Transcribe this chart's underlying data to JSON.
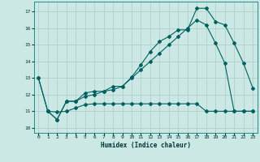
{
  "xlabel": "Humidex (Indice chaleur)",
  "bg_color": "#cce8e4",
  "grid_color": "#aaccc8",
  "line_color": "#006060",
  "xlim": [
    -0.5,
    23.5
  ],
  "ylim": [
    9.7,
    17.6
  ],
  "yticks": [
    10,
    11,
    12,
    13,
    14,
    15,
    16,
    17
  ],
  "xticks": [
    0,
    1,
    2,
    3,
    4,
    5,
    6,
    7,
    8,
    9,
    10,
    11,
    12,
    13,
    14,
    15,
    16,
    17,
    18,
    19,
    20,
    21,
    22,
    23
  ],
  "line1_x": [
    0,
    1,
    2,
    3,
    4,
    5,
    6,
    7,
    8,
    9,
    10,
    11,
    12,
    13,
    14,
    15,
    16,
    17,
    18,
    19,
    20,
    21,
    22,
    23
  ],
  "line1_y": [
    13.0,
    11.0,
    10.5,
    11.6,
    11.6,
    12.1,
    12.2,
    12.2,
    12.5,
    12.5,
    13.05,
    13.8,
    14.6,
    15.2,
    15.5,
    15.9,
    15.9,
    17.2,
    17.2,
    16.4,
    16.2,
    15.1,
    13.9,
    12.4
  ],
  "line2_x": [
    0,
    1,
    2,
    3,
    4,
    5,
    6,
    7,
    8,
    9,
    10,
    11,
    12,
    13,
    14,
    15,
    16,
    17,
    18,
    19,
    20,
    21,
    22,
    23
  ],
  "line2_y": [
    13.0,
    11.0,
    10.5,
    11.6,
    11.6,
    11.9,
    12.0,
    12.2,
    12.3,
    12.5,
    13.0,
    13.5,
    14.0,
    14.5,
    15.0,
    15.5,
    16.0,
    16.5,
    16.2,
    15.1,
    13.9,
    11.0,
    11.0,
    11.0
  ],
  "line3_x": [
    1,
    2,
    3,
    4,
    5,
    6,
    7,
    8,
    9,
    10,
    11,
    12,
    13,
    14,
    15,
    16,
    17,
    18,
    19,
    20,
    21,
    22,
    23
  ],
  "line3_y": [
    11.0,
    10.95,
    11.0,
    11.2,
    11.4,
    11.45,
    11.45,
    11.45,
    11.45,
    11.45,
    11.45,
    11.45,
    11.45,
    11.45,
    11.45,
    11.45,
    11.45,
    11.0,
    11.0,
    11.0,
    11.0,
    11.0,
    11.0
  ]
}
